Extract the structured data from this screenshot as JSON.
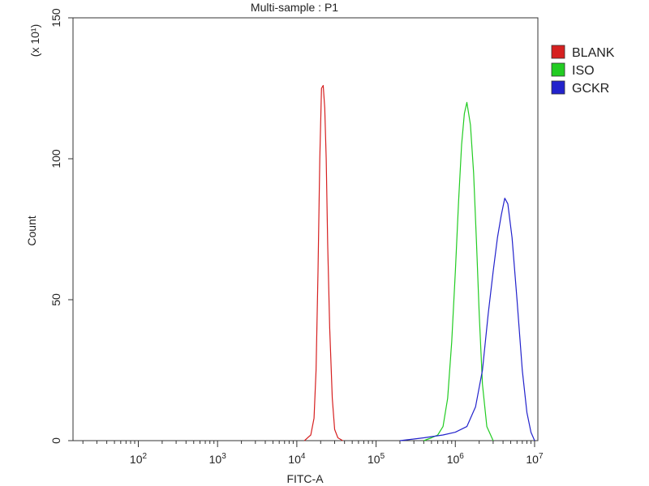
{
  "chart_data": {
    "type": "line",
    "title": "Multi-sample : P1",
    "xlabel": "FITC-A",
    "ylabel": "Count",
    "y_multiplier": "(x 10¹)",
    "x_scale": "log",
    "xlim": [
      15,
      11000000
    ],
    "ylim": [
      0,
      150
    ],
    "x_ticks": [
      {
        "value": 100,
        "base": "10",
        "exp": "2"
      },
      {
        "value": 1000,
        "base": "10",
        "exp": "3"
      },
      {
        "value": 10000,
        "base": "10",
        "exp": "4"
      },
      {
        "value": 100000,
        "base": "10",
        "exp": "5"
      },
      {
        "value": 1000000,
        "base": "10",
        "exp": "6"
      },
      {
        "value": 10000000,
        "base": "10",
        "exp": "7"
      }
    ],
    "y_ticks": [
      0,
      50,
      100,
      150
    ],
    "grid": false,
    "legend_position": "right-top",
    "series": [
      {
        "name": "BLANK",
        "color": "#d62020",
        "x": [
          12500,
          15000,
          16500,
          17500,
          18500,
          19500,
          20500,
          21500,
          22500,
          23500,
          24500,
          26000,
          28000,
          30000,
          33000,
          38000
        ],
        "y": [
          0,
          2,
          8,
          25,
          60,
          100,
          125,
          126,
          118,
          100,
          70,
          40,
          15,
          4,
          1,
          0
        ]
      },
      {
        "name": "ISO",
        "color": "#22cc22",
        "x": [
          400000,
          500000,
          600000,
          700000,
          800000,
          900000,
          1000000,
          1100000,
          1200000,
          1300000,
          1400000,
          1550000,
          1700000,
          1850000,
          2000000,
          2200000,
          2500000,
          3000000
        ],
        "y": [
          0,
          1,
          2,
          5,
          15,
          35,
          60,
          85,
          105,
          116,
          120,
          112,
          95,
          70,
          45,
          20,
          5,
          0
        ]
      },
      {
        "name": "GCKR",
        "color": "#2222cc",
        "x": [
          200000,
          400000,
          700000,
          1000000,
          1400000,
          1800000,
          2200000,
          2600000,
          3000000,
          3400000,
          3800000,
          4200000,
          4600000,
          5200000,
          6000000,
          7000000,
          8000000,
          9000000,
          10000000
        ],
        "y": [
          0,
          1,
          2,
          3,
          5,
          12,
          25,
          45,
          60,
          72,
          80,
          86,
          84,
          72,
          50,
          25,
          10,
          3,
          0
        ]
      }
    ]
  }
}
